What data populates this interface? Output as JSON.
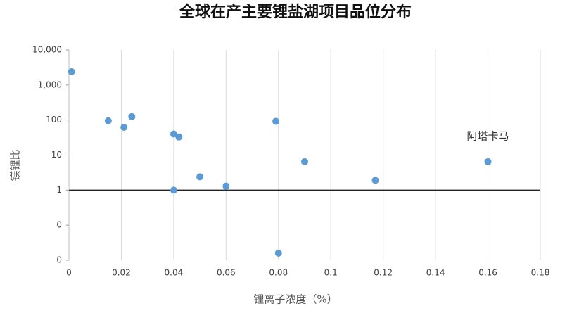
{
  "chart_data": {
    "type": "scatter",
    "title": "全球在产主要锂盐湖项目品位分布",
    "x_label": "锂离子浓度（%）",
    "y_label": "镁锂比",
    "series": [
      {
        "color": "#5b9bd5",
        "x": [
          0.001,
          0.015,
          0.021,
          0.024,
          0.04,
          0.042,
          0.05,
          0.04,
          0.06,
          0.079,
          0.08,
          0.09,
          0.117,
          0.16
        ],
        "values": [
          2400,
          95,
          62,
          125,
          40,
          33,
          2.4,
          1.0,
          1.3,
          92,
          0.016,
          6.5,
          1.9,
          6.5
        ]
      }
    ],
    "annotations": [
      {
        "text": "阿塔卡马",
        "x": 0.16,
        "y": 6.5
      }
    ],
    "xlim": [
      0,
      0.18
    ],
    "xticks": [
      0,
      0.02,
      0.04,
      0.06,
      0.08,
      0.1,
      0.12,
      0.14,
      0.16,
      0.18
    ],
    "ylim": [
      0.01,
      10000
    ],
    "y_scale": "log",
    "yticks": [
      {
        "value": 10000,
        "label": "10,000"
      },
      {
        "value": 1000,
        "label": "1,000"
      },
      100,
      10,
      1,
      {
        "value": 0.1,
        "label": "0"
      },
      {
        "value": 0.01,
        "label": "0"
      }
    ],
    "xaxis_crosses": 1,
    "grid": "x"
  }
}
